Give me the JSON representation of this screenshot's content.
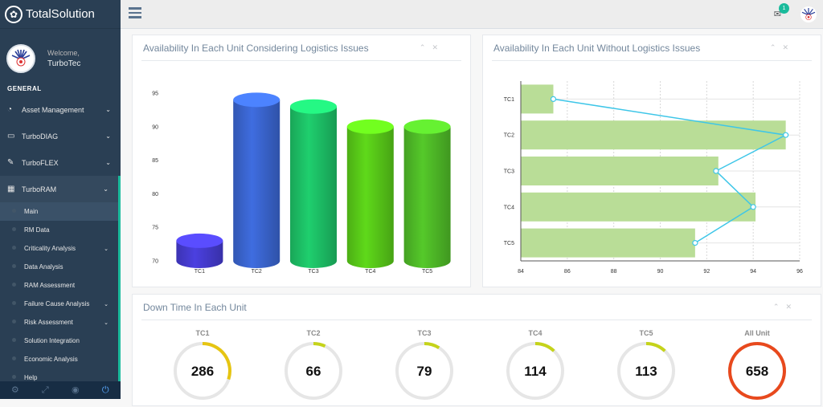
{
  "brand": {
    "name": "TotalSolution"
  },
  "profile": {
    "welcome": "Welcome,",
    "username": "TurboTec"
  },
  "sidebar": {
    "section_title": "GENERAL",
    "menu": [
      {
        "label": "Asset Management",
        "icon": "dashboard-icon"
      },
      {
        "label": "TurboDIAG",
        "icon": "desktop-icon"
      },
      {
        "label": "TurboFLEX",
        "icon": "edit-icon"
      },
      {
        "label": "TurboRAM",
        "icon": "table-icon"
      }
    ],
    "submenu": [
      {
        "label": "Main",
        "has_children": false
      },
      {
        "label": "RM Data",
        "has_children": false
      },
      {
        "label": "Criticality Analysis",
        "has_children": true
      },
      {
        "label": "Data Analysis",
        "has_children": false
      },
      {
        "label": "RAM Assessment",
        "has_children": false
      },
      {
        "label": "Failure Cause Analysis",
        "has_children": true
      },
      {
        "label": "Risk Assessment",
        "has_children": true
      },
      {
        "label": "Solution Integration",
        "has_children": false
      },
      {
        "label": "Economic Analysis",
        "has_children": false
      },
      {
        "label": "Help",
        "has_children": false
      }
    ],
    "footer_icons": [
      "settings-icon",
      "fullscreen-icon",
      "eye-slash-icon",
      "power-icon"
    ]
  },
  "topbar": {
    "notification_count": "1"
  },
  "panels": {
    "left_title": "Availability In Each Unit Considering Logistics Issues",
    "right_title": "Availability In Each Unit Without Logistics Issues",
    "bottom_title": "Down Time In Each Unit"
  },
  "chart_data": [
    {
      "type": "bar",
      "style": "3d-cylinder",
      "categories": [
        "TC1",
        "TC2",
        "TC3",
        "TC4",
        "TC5"
      ],
      "values": [
        73,
        94,
        93,
        90,
        90
      ],
      "colors": [
        "#4b40e0",
        "#3f6de0",
        "#1fcf6e",
        "#5fd91a",
        "#55c92a"
      ],
      "ylim": [
        70,
        95
      ],
      "yticks": [
        70,
        75,
        80,
        85,
        90,
        95
      ],
      "grid": false
    },
    {
      "type": "bar",
      "orientation": "horizontal",
      "categories": [
        "TC1",
        "TC2",
        "TC3",
        "TC4",
        "TC5"
      ],
      "values": [
        85.4,
        95.4,
        92.5,
        94.1,
        91.5
      ],
      "line_values": [
        85.4,
        95.4,
        92.4,
        94.0,
        91.5
      ],
      "bar_color": "#b9dd97",
      "line_color": "#3ec6e8",
      "xlim": [
        84,
        96
      ],
      "xticks": [
        84,
        86,
        88,
        90,
        92,
        94,
        96
      ],
      "grid": true
    }
  ],
  "downtime": {
    "items": [
      {
        "label": "TC1",
        "value": "286",
        "fraction": 0.3,
        "color": "#e6c512"
      },
      {
        "label": "TC2",
        "value": "66",
        "fraction": 0.07,
        "color": "#c5d31a"
      },
      {
        "label": "TC3",
        "value": "79",
        "fraction": 0.09,
        "color": "#c5d31a"
      },
      {
        "label": "TC4",
        "value": "114",
        "fraction": 0.12,
        "color": "#c5d31a"
      },
      {
        "label": "TC5",
        "value": "113",
        "fraction": 0.12,
        "color": "#c5d31a"
      },
      {
        "label": "All Unit",
        "value": "658",
        "fraction": 1.0,
        "color": "#e8491d"
      }
    ]
  }
}
